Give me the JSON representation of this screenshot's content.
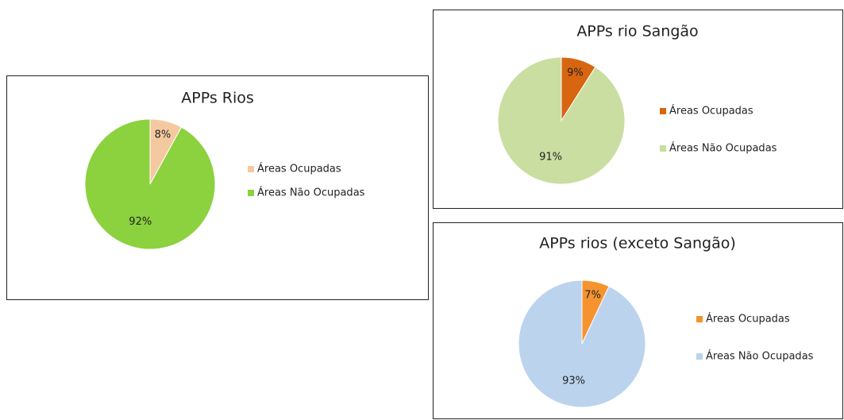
{
  "chart_data": [
    {
      "type": "pie",
      "title": "APPs Rios",
      "categories": [
        "Áreas Ocupadas",
        "Áreas Não Ocupadas"
      ],
      "values": [
        8,
        92
      ],
      "value_labels": [
        "8%",
        "92%"
      ],
      "colors": [
        "#f5c9a0",
        "#8cd13e"
      ]
    },
    {
      "type": "pie",
      "title": "APPs rio Sangão",
      "categories": [
        "Áreas Ocupadas",
        "Áreas Não Ocupadas"
      ],
      "values": [
        9,
        91
      ],
      "value_labels": [
        "9%",
        "91%"
      ],
      "colors": [
        "#d8650f",
        "#c9dea0"
      ]
    },
    {
      "type": "pie",
      "title": "APPs rios (exceto Sangão)",
      "categories": [
        "Áreas Ocupadas",
        "Áreas Não Ocupadas"
      ],
      "values": [
        7,
        93
      ],
      "value_labels": [
        "7%",
        "93%"
      ],
      "colors": [
        "#f5932f",
        "#bcd3ee"
      ]
    }
  ]
}
